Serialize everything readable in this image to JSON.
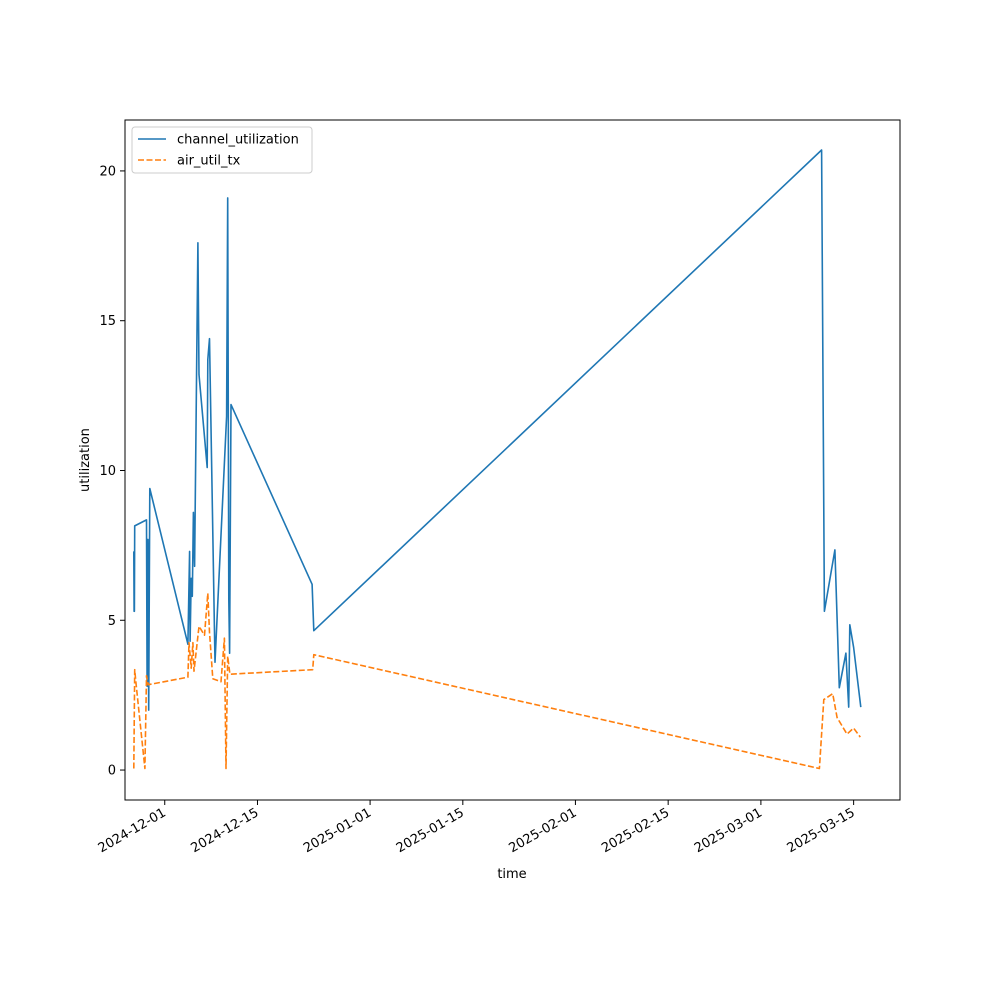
{
  "chart_data": {
    "type": "line",
    "title": "",
    "xlabel": "time",
    "ylabel": "utilization",
    "x_axis_type": "date",
    "xlim": [
      "2024-11-25",
      "2025-03-22"
    ],
    "ylim": [
      -1,
      21.7
    ],
    "x_ticks": [
      "2024-12-01",
      "2024-12-15",
      "2025-01-01",
      "2025-01-15",
      "2025-02-01",
      "2025-02-15",
      "2025-03-01",
      "2025-03-15"
    ],
    "y_ticks": [
      0,
      5,
      10,
      15,
      20
    ],
    "grid": false,
    "legend_position": "top-left",
    "series": [
      {
        "name": "channel_utilization",
        "color": "#1f77b4",
        "line_style": "solid",
        "points": [
          [
            "2024-11-26T08:00",
            7.3
          ],
          [
            "2024-11-26T09:00",
            5.3
          ],
          [
            "2024-11-26T10:00",
            5.3
          ],
          [
            "2024-11-26T11:00",
            8.15
          ],
          [
            "2024-11-28T06:00",
            8.35
          ],
          [
            "2024-11-28T08:00",
            2.8
          ],
          [
            "2024-11-28T11:00",
            7.7
          ],
          [
            "2024-11-28T14:00",
            2.0
          ],
          [
            "2024-11-28T18:00",
            9.4
          ],
          [
            "2024-12-04T12:00",
            4.2
          ],
          [
            "2024-12-04T18:00",
            7.3
          ],
          [
            "2024-12-04T20:00",
            4.3
          ],
          [
            "2024-12-05T00:00",
            6.4
          ],
          [
            "2024-12-05T04:00",
            5.8
          ],
          [
            "2024-12-05T08:00",
            8.6
          ],
          [
            "2024-12-05T12:00",
            6.8
          ],
          [
            "2024-12-06T00:00",
            17.6
          ],
          [
            "2024-12-06T04:00",
            13.2
          ],
          [
            "2024-12-07T10:00",
            10.1
          ],
          [
            "2024-12-07T12:00",
            13.7
          ],
          [
            "2024-12-07T18:00",
            14.4
          ],
          [
            "2024-12-08T14:00",
            3.6
          ],
          [
            "2024-12-10T08:00",
            11.8
          ],
          [
            "2024-12-10T12:00",
            19.1
          ],
          [
            "2024-12-10T16:00",
            5.7
          ],
          [
            "2024-12-10T19:00",
            3.9
          ],
          [
            "2024-12-11T00:00",
            12.2
          ],
          [
            "2024-12-23T06:00",
            6.2
          ],
          [
            "2024-12-23T12:00",
            4.65
          ],
          [
            "2025-03-10T04:00",
            20.7
          ],
          [
            "2025-03-10T14:00",
            5.3
          ],
          [
            "2025-03-12T04:00",
            7.35
          ],
          [
            "2025-03-12T20:00",
            2.75
          ],
          [
            "2025-03-13T20:00",
            3.9
          ],
          [
            "2025-03-14T06:00",
            2.1
          ],
          [
            "2025-03-14T10:00",
            4.85
          ],
          [
            "2025-03-15T00:00",
            4.1
          ],
          [
            "2025-03-16T02:00",
            2.1
          ]
        ]
      },
      {
        "name": "air_util_tx",
        "color": "#ff7f0e",
        "line_style": "dashed",
        "points": [
          [
            "2024-11-26T08:00",
            0.05
          ],
          [
            "2024-11-26T11:00",
            3.35
          ],
          [
            "2024-11-26T16:00",
            2.9
          ],
          [
            "2024-11-28T00:00",
            0.05
          ],
          [
            "2024-11-28T06:00",
            3.15
          ],
          [
            "2024-11-28T12:00",
            2.85
          ],
          [
            "2024-12-04T12:00",
            3.1
          ],
          [
            "2024-12-04T16:00",
            4.25
          ],
          [
            "2024-12-05T00:00",
            3.4
          ],
          [
            "2024-12-05T06:00",
            4.25
          ],
          [
            "2024-12-05T10:00",
            3.3
          ],
          [
            "2024-12-06T04:00",
            4.8
          ],
          [
            "2024-12-07T00:00",
            4.5
          ],
          [
            "2024-12-07T12:00",
            5.9
          ],
          [
            "2024-12-07T18:00",
            4.6
          ],
          [
            "2024-12-08T06:00",
            3.05
          ],
          [
            "2024-12-09T12:00",
            2.95
          ],
          [
            "2024-12-10T00:00",
            4.4
          ],
          [
            "2024-12-10T06:00",
            0.05
          ],
          [
            "2024-12-10T12:00",
            3.8
          ],
          [
            "2024-12-10T20:00",
            3.2
          ],
          [
            "2024-12-23T08:00",
            3.35
          ],
          [
            "2024-12-23T12:00",
            3.85
          ],
          [
            "2025-03-09T20:00",
            0.05
          ],
          [
            "2025-03-10T12:00",
            2.35
          ],
          [
            "2025-03-11T20:00",
            2.55
          ],
          [
            "2025-03-12T12:00",
            1.75
          ],
          [
            "2025-03-14T00:00",
            1.2
          ],
          [
            "2025-03-15T00:00",
            1.4
          ],
          [
            "2025-03-16T00:00",
            1.1
          ]
        ]
      }
    ]
  }
}
